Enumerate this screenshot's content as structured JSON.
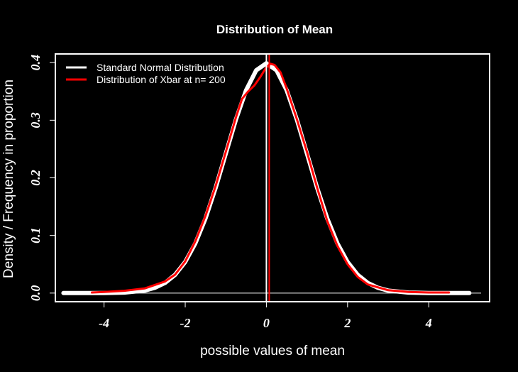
{
  "chart_data": {
    "type": "line",
    "title": "Distribution of Mean",
    "xlabel": "possible values of mean",
    "ylabel": "Density / Frequency in proportion",
    "xlim": [
      -5.2,
      5.5
    ],
    "ylim": [
      -0.015,
      0.415
    ],
    "xticks": [
      -4,
      -2,
      0,
      2,
      4
    ],
    "xtick_labels": [
      "-4",
      "-2",
      "0",
      "2",
      "4"
    ],
    "yticks": [
      0.0,
      0.1,
      0.2,
      0.3,
      0.4
    ],
    "ytick_labels": [
      "0.0",
      "0.1",
      "0.2",
      "0.3",
      "0.4"
    ],
    "legend_position": "top-left",
    "background": "#000000",
    "vlines": [
      {
        "x": 0.0,
        "color": "#ffffff"
      },
      {
        "x": 0.07,
        "color": "#ff0000"
      }
    ],
    "hlines": [
      {
        "y": 0.0,
        "color": "#ffffff"
      }
    ],
    "series": [
      {
        "name": "Standard Normal Distribution",
        "color": "#ffffff",
        "x": [
          -5.0,
          -4.5,
          -4.0,
          -3.5,
          -3.0,
          -2.75,
          -2.5,
          -2.25,
          -2.0,
          -1.75,
          -1.5,
          -1.25,
          -1.0,
          -0.75,
          -0.5,
          -0.25,
          0.0,
          0.25,
          0.5,
          0.75,
          1.0,
          1.25,
          1.5,
          1.75,
          2.0,
          2.25,
          2.5,
          2.75,
          3.0,
          3.5,
          4.0,
          4.5,
          5.0
        ],
        "y": [
          0.0,
          0.0,
          0.0001,
          0.0009,
          0.0044,
          0.0091,
          0.0175,
          0.0317,
          0.054,
          0.0863,
          0.1295,
          0.1826,
          0.242,
          0.3011,
          0.3521,
          0.3867,
          0.3989,
          0.3867,
          0.3521,
          0.3011,
          0.242,
          0.1826,
          0.1295,
          0.0863,
          0.054,
          0.0317,
          0.0175,
          0.0091,
          0.0044,
          0.0009,
          0.0001,
          0.0,
          0.0
        ]
      },
      {
        "name": "Distribution of Xbar at n= 200",
        "color": "#ff0000",
        "x": [
          -4.3,
          -4.0,
          -3.5,
          -3.0,
          -2.5,
          -2.25,
          -2.0,
          -1.75,
          -1.5,
          -1.25,
          -1.0,
          -0.75,
          -0.6,
          -0.45,
          -0.3,
          -0.15,
          0.0,
          0.1,
          0.2,
          0.35,
          0.5,
          0.75,
          1.0,
          1.25,
          1.5,
          1.75,
          2.0,
          2.25,
          2.5,
          3.0,
          3.5,
          4.0,
          4.5
        ],
        "y": [
          0.001,
          0.002,
          0.004,
          0.008,
          0.02,
          0.032,
          0.055,
          0.09,
          0.134,
          0.186,
          0.245,
          0.305,
          0.337,
          0.35,
          0.36,
          0.375,
          0.392,
          0.398,
          0.396,
          0.383,
          0.355,
          0.302,
          0.245,
          0.183,
          0.125,
          0.082,
          0.05,
          0.028,
          0.015,
          0.005,
          0.002,
          0.001,
          0.001
        ]
      }
    ]
  }
}
